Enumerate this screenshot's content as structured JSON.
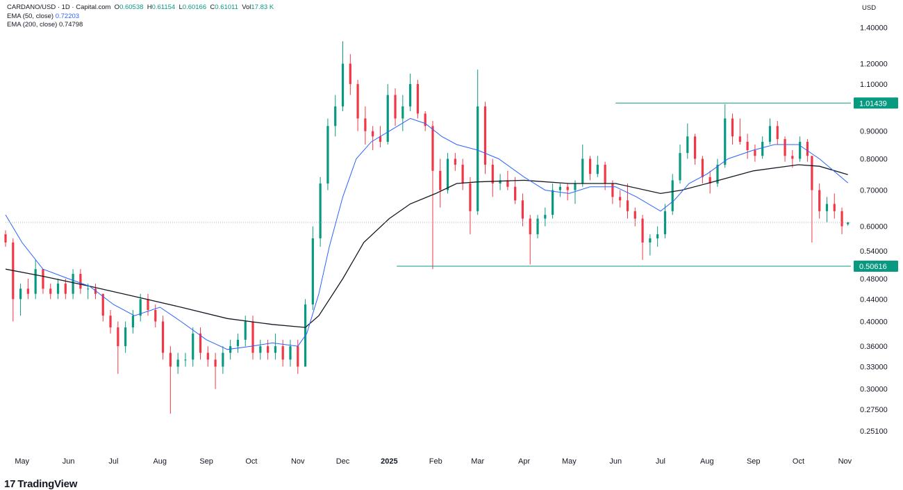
{
  "legend": {
    "symbol": "CARDANO/USD · 1D · Capital.com",
    "o_label": "O",
    "o_value": "0.60538",
    "h_label": "H",
    "h_value": "0.61154",
    "l_label": "L",
    "l_value": "0.60166",
    "c_label": "C",
    "c_value": "0.61011",
    "vol_label": "Vol",
    "vol_value": "17.83 K",
    "ema50_label": "EMA (50, close)",
    "ema50_value": "0.72203",
    "ema200_label": "EMA (200, close)",
    "ema200_value": "0.74798"
  },
  "logo": {
    "text": "TradingView",
    "mark": "17"
  },
  "colors": {
    "up": "#089981",
    "down": "#f23645",
    "ema50": "#2962ff",
    "ema200": "#131722",
    "level": "#089981",
    "grid_text": "#131722"
  },
  "chart_data": {
    "type": "candlestick",
    "currency_label": "USD",
    "y_scale": "log",
    "ylim": [
      0.233,
      1.44
    ],
    "y_ticks": [
      {
        "value": 1.4,
        "label": "1.40000"
      },
      {
        "value": 1.2,
        "label": "1.20000"
      },
      {
        "value": 1.1,
        "label": "1.10000"
      },
      {
        "value": 0.9,
        "label": "0.90000"
      },
      {
        "value": 0.8,
        "label": "0.80000"
      },
      {
        "value": 0.7,
        "label": "0.70000"
      },
      {
        "value": 0.6,
        "label": "0.60000"
      },
      {
        "value": 0.54,
        "label": "0.54000"
      },
      {
        "value": 0.48,
        "label": "0.48000"
      },
      {
        "value": 0.44,
        "label": "0.44000"
      },
      {
        "value": 0.4,
        "label": "0.40000"
      },
      {
        "value": 0.36,
        "label": "0.36000"
      },
      {
        "value": 0.33,
        "label": "0.33000"
      },
      {
        "value": 0.3,
        "label": "0.30000"
      },
      {
        "value": 0.275,
        "label": "0.27500"
      },
      {
        "value": 0.251,
        "label": "0.25100"
      }
    ],
    "x_range": [
      "2024-04-20",
      "2025-11-05"
    ],
    "x_ticks": [
      {
        "date": "2024-05-01",
        "label": "May",
        "bold": false
      },
      {
        "date": "2024-06-01",
        "label": "Jun",
        "bold": false
      },
      {
        "date": "2024-07-01",
        "label": "Jul",
        "bold": false
      },
      {
        "date": "2024-08-01",
        "label": "Aug",
        "bold": false
      },
      {
        "date": "2024-09-01",
        "label": "Sep",
        "bold": false
      },
      {
        "date": "2024-10-01",
        "label": "Oct",
        "bold": false
      },
      {
        "date": "2024-11-01",
        "label": "Nov",
        "bold": false
      },
      {
        "date": "2024-12-01",
        "label": "Dec",
        "bold": false
      },
      {
        "date": "2025-01-01",
        "label": "2025",
        "bold": true
      },
      {
        "date": "2025-02-01",
        "label": "Feb",
        "bold": false
      },
      {
        "date": "2025-03-01",
        "label": "Mar",
        "bold": false
      },
      {
        "date": "2025-04-01",
        "label": "Apr",
        "bold": false
      },
      {
        "date": "2025-05-01",
        "label": "May",
        "bold": false
      },
      {
        "date": "2025-06-01",
        "label": "Jun",
        "bold": false
      },
      {
        "date": "2025-07-01",
        "label": "Jul",
        "bold": false
      },
      {
        "date": "2025-08-01",
        "label": "Aug",
        "bold": false
      },
      {
        "date": "2025-09-01",
        "label": "Sep",
        "bold": false
      },
      {
        "date": "2025-10-01",
        "label": "Oct",
        "bold": false
      },
      {
        "date": "2025-11-01",
        "label": "Nov",
        "bold": false
      }
    ],
    "horizontal_levels": [
      {
        "value": 1.01439,
        "label": "1.01439",
        "from_date": "2025-06-01"
      },
      {
        "value": 0.50616,
        "label": "0.50616",
        "from_date": "2025-01-06"
      }
    ],
    "last_price": 0.61011,
    "candles": [
      [
        "2024-04-20",
        0.58,
        0.59,
        0.55,
        0.56
      ],
      [
        "2024-04-25",
        0.56,
        0.57,
        0.4,
        0.44
      ],
      [
        "2024-04-30",
        0.44,
        0.47,
        0.41,
        0.46
      ],
      [
        "2024-05-05",
        0.46,
        0.48,
        0.44,
        0.45
      ],
      [
        "2024-05-10",
        0.45,
        0.52,
        0.44,
        0.5
      ],
      [
        "2024-05-15",
        0.5,
        0.5,
        0.45,
        0.46
      ],
      [
        "2024-05-20",
        0.46,
        0.47,
        0.44,
        0.45
      ],
      [
        "2024-05-25",
        0.45,
        0.48,
        0.44,
        0.47
      ],
      [
        "2024-05-30",
        0.47,
        0.48,
        0.44,
        0.45
      ],
      [
        "2024-06-04",
        0.45,
        0.5,
        0.44,
        0.49
      ],
      [
        "2024-06-09",
        0.49,
        0.5,
        0.45,
        0.46
      ],
      [
        "2024-06-14",
        0.46,
        0.47,
        0.44,
        0.46
      ],
      [
        "2024-06-19",
        0.46,
        0.47,
        0.44,
        0.45
      ],
      [
        "2024-06-24",
        0.45,
        0.45,
        0.4,
        0.41
      ],
      [
        "2024-06-29",
        0.41,
        0.42,
        0.38,
        0.39
      ],
      [
        "2024-07-04",
        0.39,
        0.4,
        0.32,
        0.36
      ],
      [
        "2024-07-09",
        0.36,
        0.4,
        0.35,
        0.39
      ],
      [
        "2024-07-14",
        0.39,
        0.42,
        0.38,
        0.41
      ],
      [
        "2024-07-19",
        0.41,
        0.45,
        0.4,
        0.44
      ],
      [
        "2024-07-24",
        0.44,
        0.45,
        0.41,
        0.42
      ],
      [
        "2024-07-29",
        0.42,
        0.43,
        0.39,
        0.4
      ],
      [
        "2024-08-03",
        0.4,
        0.41,
        0.34,
        0.35
      ],
      [
        "2024-08-08",
        0.35,
        0.36,
        0.27,
        0.33
      ],
      [
        "2024-08-13",
        0.33,
        0.35,
        0.32,
        0.34
      ],
      [
        "2024-08-18",
        0.34,
        0.35,
        0.33,
        0.34
      ],
      [
        "2024-08-23",
        0.34,
        0.39,
        0.33,
        0.38
      ],
      [
        "2024-08-28",
        0.38,
        0.39,
        0.34,
        0.35
      ],
      [
        "2024-09-02",
        0.35,
        0.36,
        0.33,
        0.34
      ],
      [
        "2024-09-07",
        0.34,
        0.35,
        0.3,
        0.33
      ],
      [
        "2024-09-12",
        0.33,
        0.36,
        0.32,
        0.35
      ],
      [
        "2024-09-17",
        0.35,
        0.37,
        0.34,
        0.36
      ],
      [
        "2024-09-22",
        0.36,
        0.38,
        0.35,
        0.37
      ],
      [
        "2024-09-27",
        0.37,
        0.41,
        0.36,
        0.4
      ],
      [
        "2024-10-02",
        0.4,
        0.41,
        0.34,
        0.35
      ],
      [
        "2024-10-07",
        0.35,
        0.37,
        0.34,
        0.36
      ],
      [
        "2024-10-12",
        0.36,
        0.37,
        0.34,
        0.35
      ],
      [
        "2024-10-17",
        0.35,
        0.38,
        0.34,
        0.36
      ],
      [
        "2024-10-22",
        0.36,
        0.37,
        0.33,
        0.34
      ],
      [
        "2024-10-27",
        0.34,
        0.37,
        0.33,
        0.36
      ],
      [
        "2024-11-01",
        0.36,
        0.37,
        0.32,
        0.33
      ],
      [
        "2024-11-06",
        0.33,
        0.44,
        0.33,
        0.43
      ],
      [
        "2024-11-11",
        0.43,
        0.6,
        0.42,
        0.57
      ],
      [
        "2024-11-16",
        0.57,
        0.74,
        0.55,
        0.72
      ],
      [
        "2024-11-21",
        0.72,
        0.95,
        0.7,
        0.92
      ],
      [
        "2024-11-26",
        0.92,
        1.05,
        0.88,
        1.0
      ],
      [
        "2024-12-01",
        1.0,
        1.32,
        0.98,
        1.2
      ],
      [
        "2024-12-06",
        1.2,
        1.25,
        1.05,
        1.1
      ],
      [
        "2024-12-11",
        1.1,
        1.12,
        0.9,
        0.95
      ],
      [
        "2024-12-16",
        0.95,
        1.0,
        0.85,
        0.9
      ],
      [
        "2024-12-21",
        0.9,
        0.92,
        0.83,
        0.88
      ],
      [
        "2024-12-26",
        0.88,
        0.92,
        0.84,
        0.86
      ],
      [
        "2024-12-31",
        0.86,
        1.1,
        0.85,
        1.05
      ],
      [
        "2025-01-05",
        1.05,
        1.08,
        0.92,
        0.95
      ],
      [
        "2025-01-10",
        0.95,
        1.05,
        0.9,
        1.0
      ],
      [
        "2025-01-15",
        1.0,
        1.15,
        0.98,
        1.1
      ],
      [
        "2025-01-20",
        1.1,
        1.12,
        0.95,
        0.97
      ],
      [
        "2025-01-25",
        0.97,
        0.98,
        0.9,
        0.92
      ],
      [
        "2025-01-30",
        0.92,
        0.94,
        0.5,
        0.76
      ],
      [
        "2025-02-04",
        0.76,
        0.8,
        0.65,
        0.7
      ],
      [
        "2025-02-09",
        0.7,
        0.82,
        0.69,
        0.8
      ],
      [
        "2025-02-14",
        0.8,
        0.82,
        0.76,
        0.78
      ],
      [
        "2025-02-19",
        0.78,
        0.8,
        0.7,
        0.72
      ],
      [
        "2025-02-24",
        0.72,
        0.74,
        0.58,
        0.64
      ],
      [
        "2025-03-01",
        0.64,
        1.17,
        0.63,
        1.0
      ],
      [
        "2025-03-06",
        1.0,
        1.02,
        0.75,
        0.78
      ],
      [
        "2025-03-11",
        0.78,
        0.8,
        0.68,
        0.72
      ],
      [
        "2025-03-16",
        0.72,
        0.75,
        0.7,
        0.73
      ],
      [
        "2025-03-21",
        0.73,
        0.76,
        0.7,
        0.71
      ],
      [
        "2025-03-26",
        0.71,
        0.74,
        0.66,
        0.67
      ],
      [
        "2025-03-31",
        0.67,
        0.69,
        0.6,
        0.62
      ],
      [
        "2025-04-05",
        0.62,
        0.63,
        0.51,
        0.58
      ],
      [
        "2025-04-10",
        0.58,
        0.63,
        0.57,
        0.62
      ],
      [
        "2025-04-15",
        0.62,
        0.65,
        0.6,
        0.63
      ],
      [
        "2025-04-20",
        0.63,
        0.72,
        0.62,
        0.7
      ],
      [
        "2025-04-25",
        0.7,
        0.72,
        0.68,
        0.71
      ],
      [
        "2025-04-30",
        0.71,
        0.72,
        0.67,
        0.7
      ],
      [
        "2025-05-05",
        0.7,
        0.73,
        0.66,
        0.72
      ],
      [
        "2025-05-10",
        0.72,
        0.85,
        0.71,
        0.8
      ],
      [
        "2025-05-15",
        0.8,
        0.81,
        0.73,
        0.75
      ],
      [
        "2025-05-20",
        0.75,
        0.81,
        0.74,
        0.78
      ],
      [
        "2025-05-25",
        0.78,
        0.79,
        0.7,
        0.72
      ],
      [
        "2025-05-30",
        0.72,
        0.73,
        0.66,
        0.68
      ],
      [
        "2025-06-04",
        0.68,
        0.7,
        0.65,
        0.67
      ],
      [
        "2025-06-09",
        0.67,
        0.72,
        0.62,
        0.64
      ],
      [
        "2025-06-14",
        0.64,
        0.65,
        0.6,
        0.62
      ],
      [
        "2025-06-19",
        0.62,
        0.63,
        0.52,
        0.56
      ],
      [
        "2025-06-24",
        0.56,
        0.58,
        0.53,
        0.57
      ],
      [
        "2025-06-29",
        0.57,
        0.6,
        0.55,
        0.58
      ],
      [
        "2025-07-04",
        0.58,
        0.66,
        0.57,
        0.64
      ],
      [
        "2025-07-09",
        0.64,
        0.75,
        0.63,
        0.73
      ],
      [
        "2025-07-14",
        0.73,
        0.85,
        0.72,
        0.82
      ],
      [
        "2025-07-19",
        0.82,
        0.93,
        0.8,
        0.88
      ],
      [
        "2025-07-24",
        0.88,
        0.89,
        0.78,
        0.8
      ],
      [
        "2025-07-29",
        0.8,
        0.81,
        0.72,
        0.74
      ],
      [
        "2025-08-03",
        0.74,
        0.76,
        0.69,
        0.72
      ],
      [
        "2025-08-08",
        0.72,
        0.8,
        0.71,
        0.78
      ],
      [
        "2025-08-13",
        0.78,
        1.01,
        0.77,
        0.95
      ],
      [
        "2025-08-18",
        0.95,
        0.97,
        0.85,
        0.88
      ],
      [
        "2025-08-23",
        0.88,
        0.95,
        0.85,
        0.86
      ],
      [
        "2025-08-28",
        0.86,
        0.89,
        0.8,
        0.83
      ],
      [
        "2025-09-02",
        0.83,
        0.85,
        0.79,
        0.81
      ],
      [
        "2025-09-07",
        0.81,
        0.88,
        0.8,
        0.86
      ],
      [
        "2025-09-12",
        0.86,
        0.95,
        0.85,
        0.92
      ],
      [
        "2025-09-17",
        0.92,
        0.94,
        0.85,
        0.87
      ],
      [
        "2025-09-22",
        0.87,
        0.88,
        0.79,
        0.81
      ],
      [
        "2025-09-27",
        0.81,
        0.83,
        0.77,
        0.8
      ],
      [
        "2025-10-02",
        0.8,
        0.88,
        0.79,
        0.86
      ],
      [
        "2025-10-07",
        0.86,
        0.87,
        0.79,
        0.81
      ],
      [
        "2025-10-10",
        0.81,
        0.81,
        0.56,
        0.7
      ],
      [
        "2025-10-15",
        0.7,
        0.72,
        0.62,
        0.64
      ],
      [
        "2025-10-20",
        0.64,
        0.68,
        0.61,
        0.66
      ],
      [
        "2025-10-25",
        0.66,
        0.69,
        0.62,
        0.64
      ],
      [
        "2025-10-30",
        0.64,
        0.65,
        0.58,
        0.6
      ],
      [
        "2025-11-03",
        0.60538,
        0.61154,
        0.60166,
        0.61011
      ]
    ],
    "ema50": [
      [
        "2024-04-20",
        0.63
      ],
      [
        "2024-05-01",
        0.56
      ],
      [
        "2024-05-15",
        0.5
      ],
      [
        "2024-06-01",
        0.48
      ],
      [
        "2024-06-15",
        0.465
      ],
      [
        "2024-07-01",
        0.43
      ],
      [
        "2024-07-15",
        0.41
      ],
      [
        "2024-08-01",
        0.425
      ],
      [
        "2024-08-15",
        0.4
      ],
      [
        "2024-09-01",
        0.37
      ],
      [
        "2024-09-15",
        0.355
      ],
      [
        "2024-10-01",
        0.36
      ],
      [
        "2024-10-15",
        0.365
      ],
      [
        "2024-11-01",
        0.36
      ],
      [
        "2024-11-07",
        0.38
      ],
      [
        "2024-11-15",
        0.45
      ],
      [
        "2024-11-22",
        0.55
      ],
      [
        "2024-12-01",
        0.68
      ],
      [
        "2024-12-10",
        0.8
      ],
      [
        "2024-12-20",
        0.86
      ],
      [
        "2025-01-01",
        0.9
      ],
      [
        "2025-01-15",
        0.95
      ],
      [
        "2025-01-25",
        0.93
      ],
      [
        "2025-02-05",
        0.88
      ],
      [
        "2025-02-15",
        0.85
      ],
      [
        "2025-03-01",
        0.83
      ],
      [
        "2025-03-15",
        0.8
      ],
      [
        "2025-04-01",
        0.74
      ],
      [
        "2025-04-15",
        0.7
      ],
      [
        "2025-05-01",
        0.69
      ],
      [
        "2025-05-15",
        0.71
      ],
      [
        "2025-06-01",
        0.71
      ],
      [
        "2025-06-15",
        0.68
      ],
      [
        "2025-07-01",
        0.64
      ],
      [
        "2025-07-10",
        0.67
      ],
      [
        "2025-07-20",
        0.72
      ],
      [
        "2025-08-01",
        0.75
      ],
      [
        "2025-08-15",
        0.8
      ],
      [
        "2025-09-01",
        0.83
      ],
      [
        "2025-09-15",
        0.85
      ],
      [
        "2025-10-01",
        0.85
      ],
      [
        "2025-10-15",
        0.8
      ],
      [
        "2025-11-03",
        0.72203
      ]
    ],
    "ema200": [
      [
        "2024-04-20",
        0.5
      ],
      [
        "2024-05-15",
        0.485
      ],
      [
        "2024-06-15",
        0.465
      ],
      [
        "2024-07-15",
        0.445
      ],
      [
        "2024-08-15",
        0.425
      ],
      [
        "2024-09-15",
        0.405
      ],
      [
        "2024-10-15",
        0.395
      ],
      [
        "2024-11-06",
        0.39
      ],
      [
        "2024-11-15",
        0.41
      ],
      [
        "2024-12-01",
        0.48
      ],
      [
        "2024-12-15",
        0.56
      ],
      [
        "2025-01-01",
        0.62
      ],
      [
        "2025-01-15",
        0.66
      ],
      [
        "2025-02-01",
        0.69
      ],
      [
        "2025-02-15",
        0.72
      ],
      [
        "2025-03-01",
        0.725
      ],
      [
        "2025-04-01",
        0.73
      ],
      [
        "2025-05-01",
        0.72
      ],
      [
        "2025-06-01",
        0.72
      ],
      [
        "2025-07-01",
        0.69
      ],
      [
        "2025-07-15",
        0.7
      ],
      [
        "2025-08-01",
        0.72
      ],
      [
        "2025-09-01",
        0.76
      ],
      [
        "2025-10-01",
        0.78
      ],
      [
        "2025-10-15",
        0.775
      ],
      [
        "2025-11-03",
        0.74798
      ]
    ]
  }
}
